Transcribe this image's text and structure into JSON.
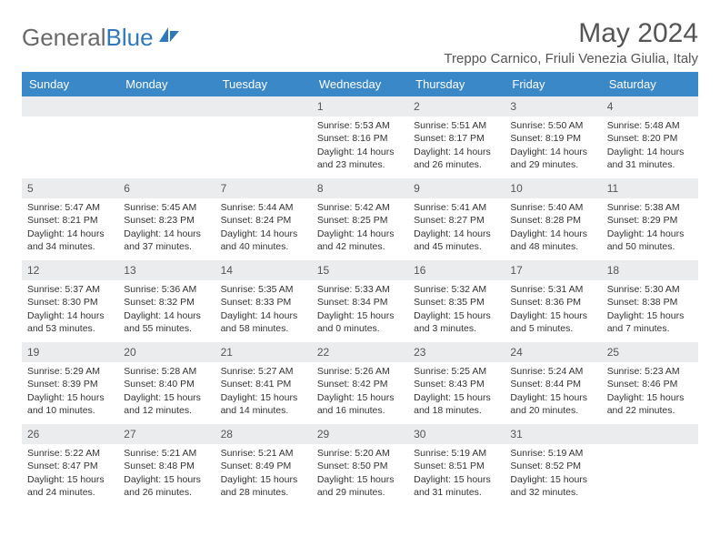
{
  "brand": {
    "part1": "General",
    "part2": "Blue"
  },
  "title": "May 2024",
  "location": "Treppo Carnico, Friuli Venezia Giulia, Italy",
  "weekdays": [
    "Sunday",
    "Monday",
    "Tuesday",
    "Wednesday",
    "Thursday",
    "Friday",
    "Saturday"
  ],
  "colors": {
    "header_bg": "#3b88c9",
    "header_text": "#ffffff",
    "daynum_bg": "#ebeced",
    "text": "#333333",
    "title_text": "#555555",
    "brand_gray": "#6a6a6a",
    "brand_blue": "#2f78bd",
    "page_bg": "#ffffff"
  },
  "typography": {
    "month_title_fontsize": 30,
    "location_fontsize": 15,
    "weekday_fontsize": 13,
    "daynum_fontsize": 12,
    "cell_fontsize": 10.5
  },
  "layout": {
    "columns": 7,
    "rows": 5,
    "first_weekday_index": 3
  },
  "days": [
    {
      "n": 1,
      "sunrise": "5:53 AM",
      "sunset": "8:16 PM",
      "daylight": "14 hours and 23 minutes."
    },
    {
      "n": 2,
      "sunrise": "5:51 AM",
      "sunset": "8:17 PM",
      "daylight": "14 hours and 26 minutes."
    },
    {
      "n": 3,
      "sunrise": "5:50 AM",
      "sunset": "8:19 PM",
      "daylight": "14 hours and 29 minutes."
    },
    {
      "n": 4,
      "sunrise": "5:48 AM",
      "sunset": "8:20 PM",
      "daylight": "14 hours and 31 minutes."
    },
    {
      "n": 5,
      "sunrise": "5:47 AM",
      "sunset": "8:21 PM",
      "daylight": "14 hours and 34 minutes."
    },
    {
      "n": 6,
      "sunrise": "5:45 AM",
      "sunset": "8:23 PM",
      "daylight": "14 hours and 37 minutes."
    },
    {
      "n": 7,
      "sunrise": "5:44 AM",
      "sunset": "8:24 PM",
      "daylight": "14 hours and 40 minutes."
    },
    {
      "n": 8,
      "sunrise": "5:42 AM",
      "sunset": "8:25 PM",
      "daylight": "14 hours and 42 minutes."
    },
    {
      "n": 9,
      "sunrise": "5:41 AM",
      "sunset": "8:27 PM",
      "daylight": "14 hours and 45 minutes."
    },
    {
      "n": 10,
      "sunrise": "5:40 AM",
      "sunset": "8:28 PM",
      "daylight": "14 hours and 48 minutes."
    },
    {
      "n": 11,
      "sunrise": "5:38 AM",
      "sunset": "8:29 PM",
      "daylight": "14 hours and 50 minutes."
    },
    {
      "n": 12,
      "sunrise": "5:37 AM",
      "sunset": "8:30 PM",
      "daylight": "14 hours and 53 minutes."
    },
    {
      "n": 13,
      "sunrise": "5:36 AM",
      "sunset": "8:32 PM",
      "daylight": "14 hours and 55 minutes."
    },
    {
      "n": 14,
      "sunrise": "5:35 AM",
      "sunset": "8:33 PM",
      "daylight": "14 hours and 58 minutes."
    },
    {
      "n": 15,
      "sunrise": "5:33 AM",
      "sunset": "8:34 PM",
      "daylight": "15 hours and 0 minutes."
    },
    {
      "n": 16,
      "sunrise": "5:32 AM",
      "sunset": "8:35 PM",
      "daylight": "15 hours and 3 minutes."
    },
    {
      "n": 17,
      "sunrise": "5:31 AM",
      "sunset": "8:36 PM",
      "daylight": "15 hours and 5 minutes."
    },
    {
      "n": 18,
      "sunrise": "5:30 AM",
      "sunset": "8:38 PM",
      "daylight": "15 hours and 7 minutes."
    },
    {
      "n": 19,
      "sunrise": "5:29 AM",
      "sunset": "8:39 PM",
      "daylight": "15 hours and 10 minutes."
    },
    {
      "n": 20,
      "sunrise": "5:28 AM",
      "sunset": "8:40 PM",
      "daylight": "15 hours and 12 minutes."
    },
    {
      "n": 21,
      "sunrise": "5:27 AM",
      "sunset": "8:41 PM",
      "daylight": "15 hours and 14 minutes."
    },
    {
      "n": 22,
      "sunrise": "5:26 AM",
      "sunset": "8:42 PM",
      "daylight": "15 hours and 16 minutes."
    },
    {
      "n": 23,
      "sunrise": "5:25 AM",
      "sunset": "8:43 PM",
      "daylight": "15 hours and 18 minutes."
    },
    {
      "n": 24,
      "sunrise": "5:24 AM",
      "sunset": "8:44 PM",
      "daylight": "15 hours and 20 minutes."
    },
    {
      "n": 25,
      "sunrise": "5:23 AM",
      "sunset": "8:46 PM",
      "daylight": "15 hours and 22 minutes."
    },
    {
      "n": 26,
      "sunrise": "5:22 AM",
      "sunset": "8:47 PM",
      "daylight": "15 hours and 24 minutes."
    },
    {
      "n": 27,
      "sunrise": "5:21 AM",
      "sunset": "8:48 PM",
      "daylight": "15 hours and 26 minutes."
    },
    {
      "n": 28,
      "sunrise": "5:21 AM",
      "sunset": "8:49 PM",
      "daylight": "15 hours and 28 minutes."
    },
    {
      "n": 29,
      "sunrise": "5:20 AM",
      "sunset": "8:50 PM",
      "daylight": "15 hours and 29 minutes."
    },
    {
      "n": 30,
      "sunrise": "5:19 AM",
      "sunset": "8:51 PM",
      "daylight": "15 hours and 31 minutes."
    },
    {
      "n": 31,
      "sunrise": "5:19 AM",
      "sunset": "8:52 PM",
      "daylight": "15 hours and 32 minutes."
    }
  ],
  "labels": {
    "sunrise_prefix": "Sunrise: ",
    "sunset_prefix": "Sunset: ",
    "daylight_prefix": "Daylight: "
  }
}
